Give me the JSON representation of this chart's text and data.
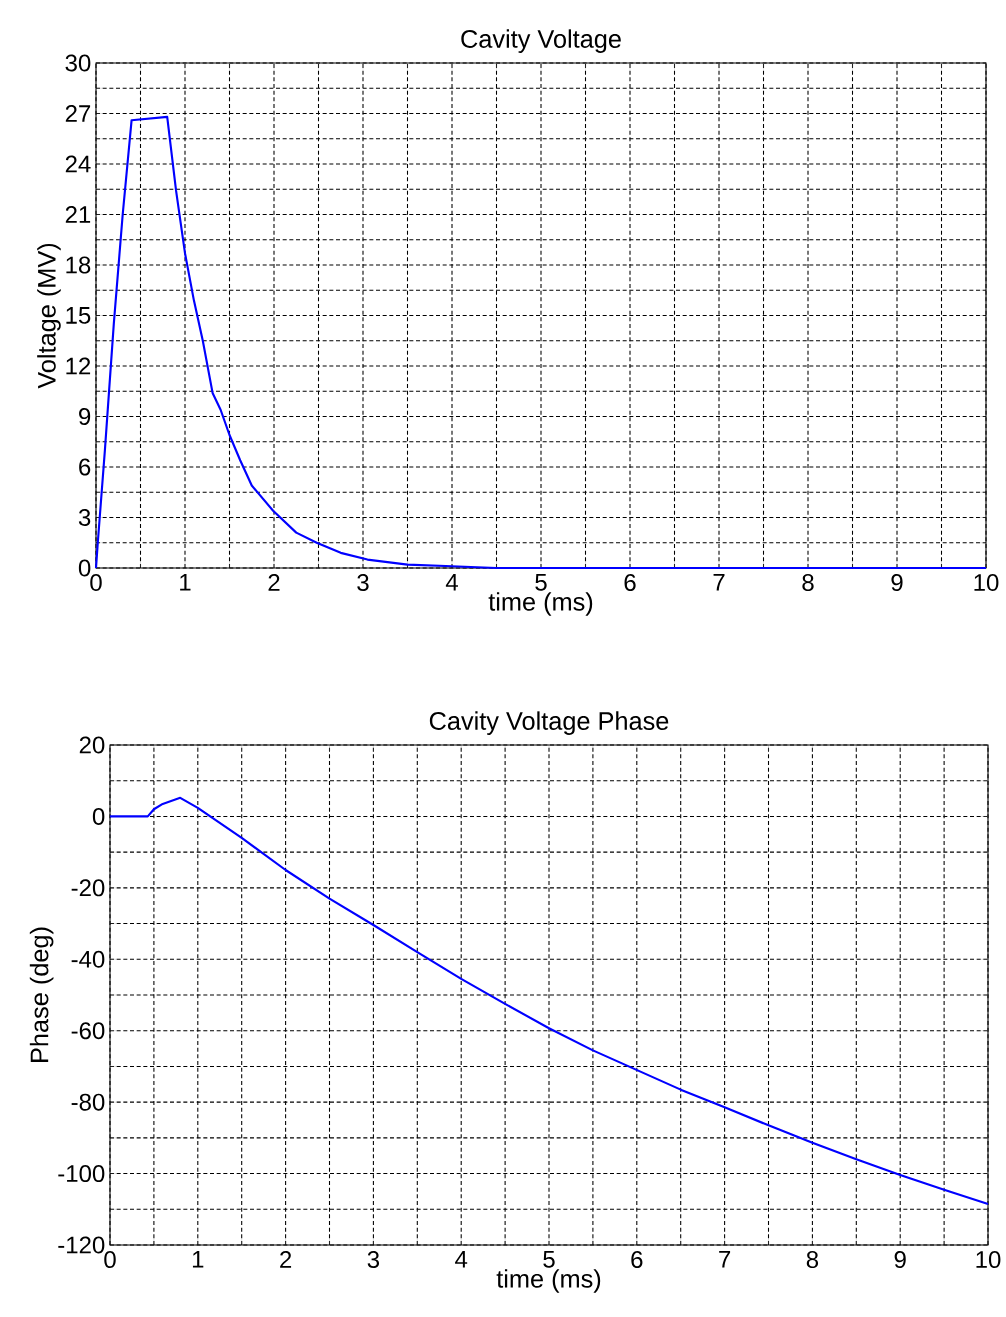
{
  "chart_data": [
    {
      "type": "line",
      "title": "Cavity Voltage",
      "xlabel": "time (ms)",
      "ylabel": "Voltage (MV)",
      "color": "#0000ff",
      "grid": true,
      "x": [
        0,
        0.02,
        0.1,
        0.2,
        0.3,
        0.4,
        0.8,
        0.9,
        1.0,
        1.1,
        1.2,
        1.31,
        1.4,
        1.5,
        1.62,
        1.75,
        1.99,
        2.25,
        2.48,
        2.75,
        3.05,
        3.5,
        4,
        4.5,
        5,
        6,
        7,
        8,
        9,
        10
      ],
      "values": [
        0,
        1.5,
        7,
        14.5,
        21,
        26.6,
        26.8,
        22.4,
        18.7,
        15.9,
        13.5,
        10.4,
        9.4,
        7.9,
        6.4,
        4.9,
        3.4,
        2.1,
        1.5,
        0.9,
        0.5,
        0.2,
        0.1,
        0,
        0,
        0,
        0,
        0,
        0,
        0
      ],
      "xlim": [
        0,
        10
      ],
      "ylim": [
        0,
        30
      ],
      "xticks": [
        0,
        {
          "value": 0.5,
          "label": null
        },
        1,
        {
          "value": 1.5,
          "label": null
        },
        2,
        {
          "value": 2.5,
          "label": null
        },
        3,
        {
          "value": 3.5,
          "label": null
        },
        4,
        {
          "value": 4.5,
          "label": null
        },
        5,
        {
          "value": 5.5,
          "label": null
        },
        6,
        {
          "value": 6.5,
          "label": null
        },
        7,
        {
          "value": 7.5,
          "label": null
        },
        8,
        {
          "value": 8.5,
          "label": null
        },
        9,
        {
          "value": 9.5,
          "label": null
        },
        10
      ],
      "yticks": [
        0,
        {
          "value": 1.5,
          "label": null
        },
        3,
        {
          "value": 4.5,
          "label": null
        },
        6,
        {
          "value": 7.5,
          "label": null
        },
        9,
        {
          "value": 10.5,
          "label": null
        },
        12,
        {
          "value": 13.5,
          "label": null
        },
        15,
        {
          "value": 16.5,
          "label": null
        },
        18,
        {
          "value": 19.5,
          "label": null
        },
        21,
        {
          "value": 22.5,
          "label": null
        },
        24,
        {
          "value": 25.5,
          "label": null
        },
        27,
        {
          "value": 28.5,
          "label": null
        },
        30
      ]
    },
    {
      "type": "line",
      "title": "Cavity Voltage Phase",
      "xlabel": "time (ms)",
      "ylabel": "Phase (deg)",
      "color": "#0000ff",
      "grid": true,
      "x": [
        0,
        0.43,
        0.5,
        0.6,
        0.8,
        1.0,
        1.5,
        2,
        2.5,
        3,
        3.5,
        4,
        4.5,
        5,
        5.5,
        6,
        6.5,
        7,
        7.5,
        8,
        8.5,
        9,
        9.5,
        10
      ],
      "values": [
        0,
        0,
        2,
        3.5,
        5.2,
        2.4,
        -6,
        -15,
        -23,
        -30.4,
        -38,
        -45.5,
        -52.5,
        -59.3,
        -65.5,
        -71,
        -76.5,
        -81.4,
        -86.5,
        -91.4,
        -96,
        -100.4,
        -104.5,
        -108.5
      ],
      "xlim": [
        0,
        10
      ],
      "ylim": [
        -120,
        20
      ],
      "xticks": [
        0,
        {
          "value": 0.5,
          "label": null
        },
        1,
        {
          "value": 1.5,
          "label": null
        },
        2,
        {
          "value": 2.5,
          "label": null
        },
        3,
        {
          "value": 3.5,
          "label": null
        },
        4,
        {
          "value": 4.5,
          "label": null
        },
        5,
        {
          "value": 5.5,
          "label": null
        },
        6,
        {
          "value": 6.5,
          "label": null
        },
        7,
        {
          "value": 7.5,
          "label": null
        },
        8,
        {
          "value": 8.5,
          "label": null
        },
        9,
        {
          "value": 9.5,
          "label": null
        },
        10
      ],
      "yticks": [
        -120,
        {
          "value": -110,
          "label": null
        },
        -100,
        {
          "value": -90,
          "label": null
        },
        -80,
        {
          "value": -70,
          "label": null
        },
        -60,
        {
          "value": -50,
          "label": null
        },
        -40,
        {
          "value": -30,
          "label": null
        },
        -20,
        {
          "value": -10,
          "label": null
        },
        0,
        {
          "value": 10,
          "label": null
        },
        20
      ]
    }
  ]
}
